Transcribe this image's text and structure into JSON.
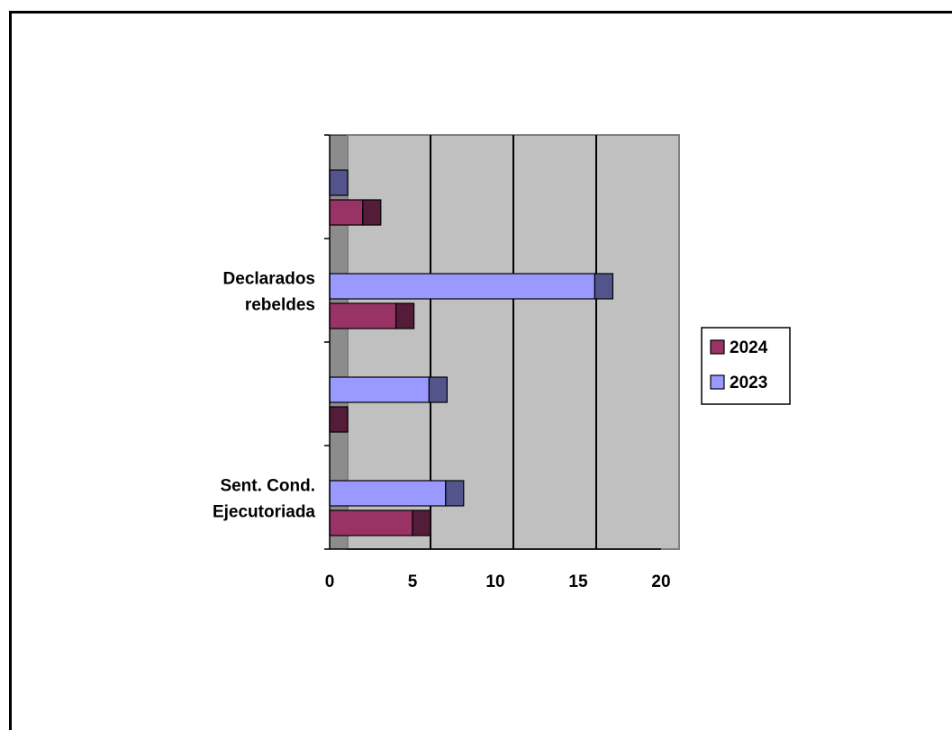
{
  "chart_data": {
    "type": "bar",
    "orientation": "horizontal",
    "style": "3d",
    "categories": [
      "Sent. Cond. Ejecutoriada",
      "",
      "Declarados rebeldes",
      ""
    ],
    "category_label_lines": [
      [
        "Sent. Cond.",
        "Ejecutoriada"
      ],
      [],
      [
        "Declarados",
        "rebeldes"
      ],
      []
    ],
    "series": [
      {
        "name": "2023",
        "values": [
          7,
          6,
          16,
          0
        ],
        "color": "#9999ff"
      },
      {
        "name": "2024",
        "values": [
          5,
          0,
          4,
          2
        ],
        "color": "#993366"
      }
    ],
    "xlim": [
      0,
      20
    ],
    "xticks": [
      "0",
      "5",
      "10",
      "15",
      "20"
    ],
    "legend": [
      "2024",
      "2023"
    ],
    "legend_position": "right",
    "plot_background": "#c0c0c0",
    "grid": true
  }
}
